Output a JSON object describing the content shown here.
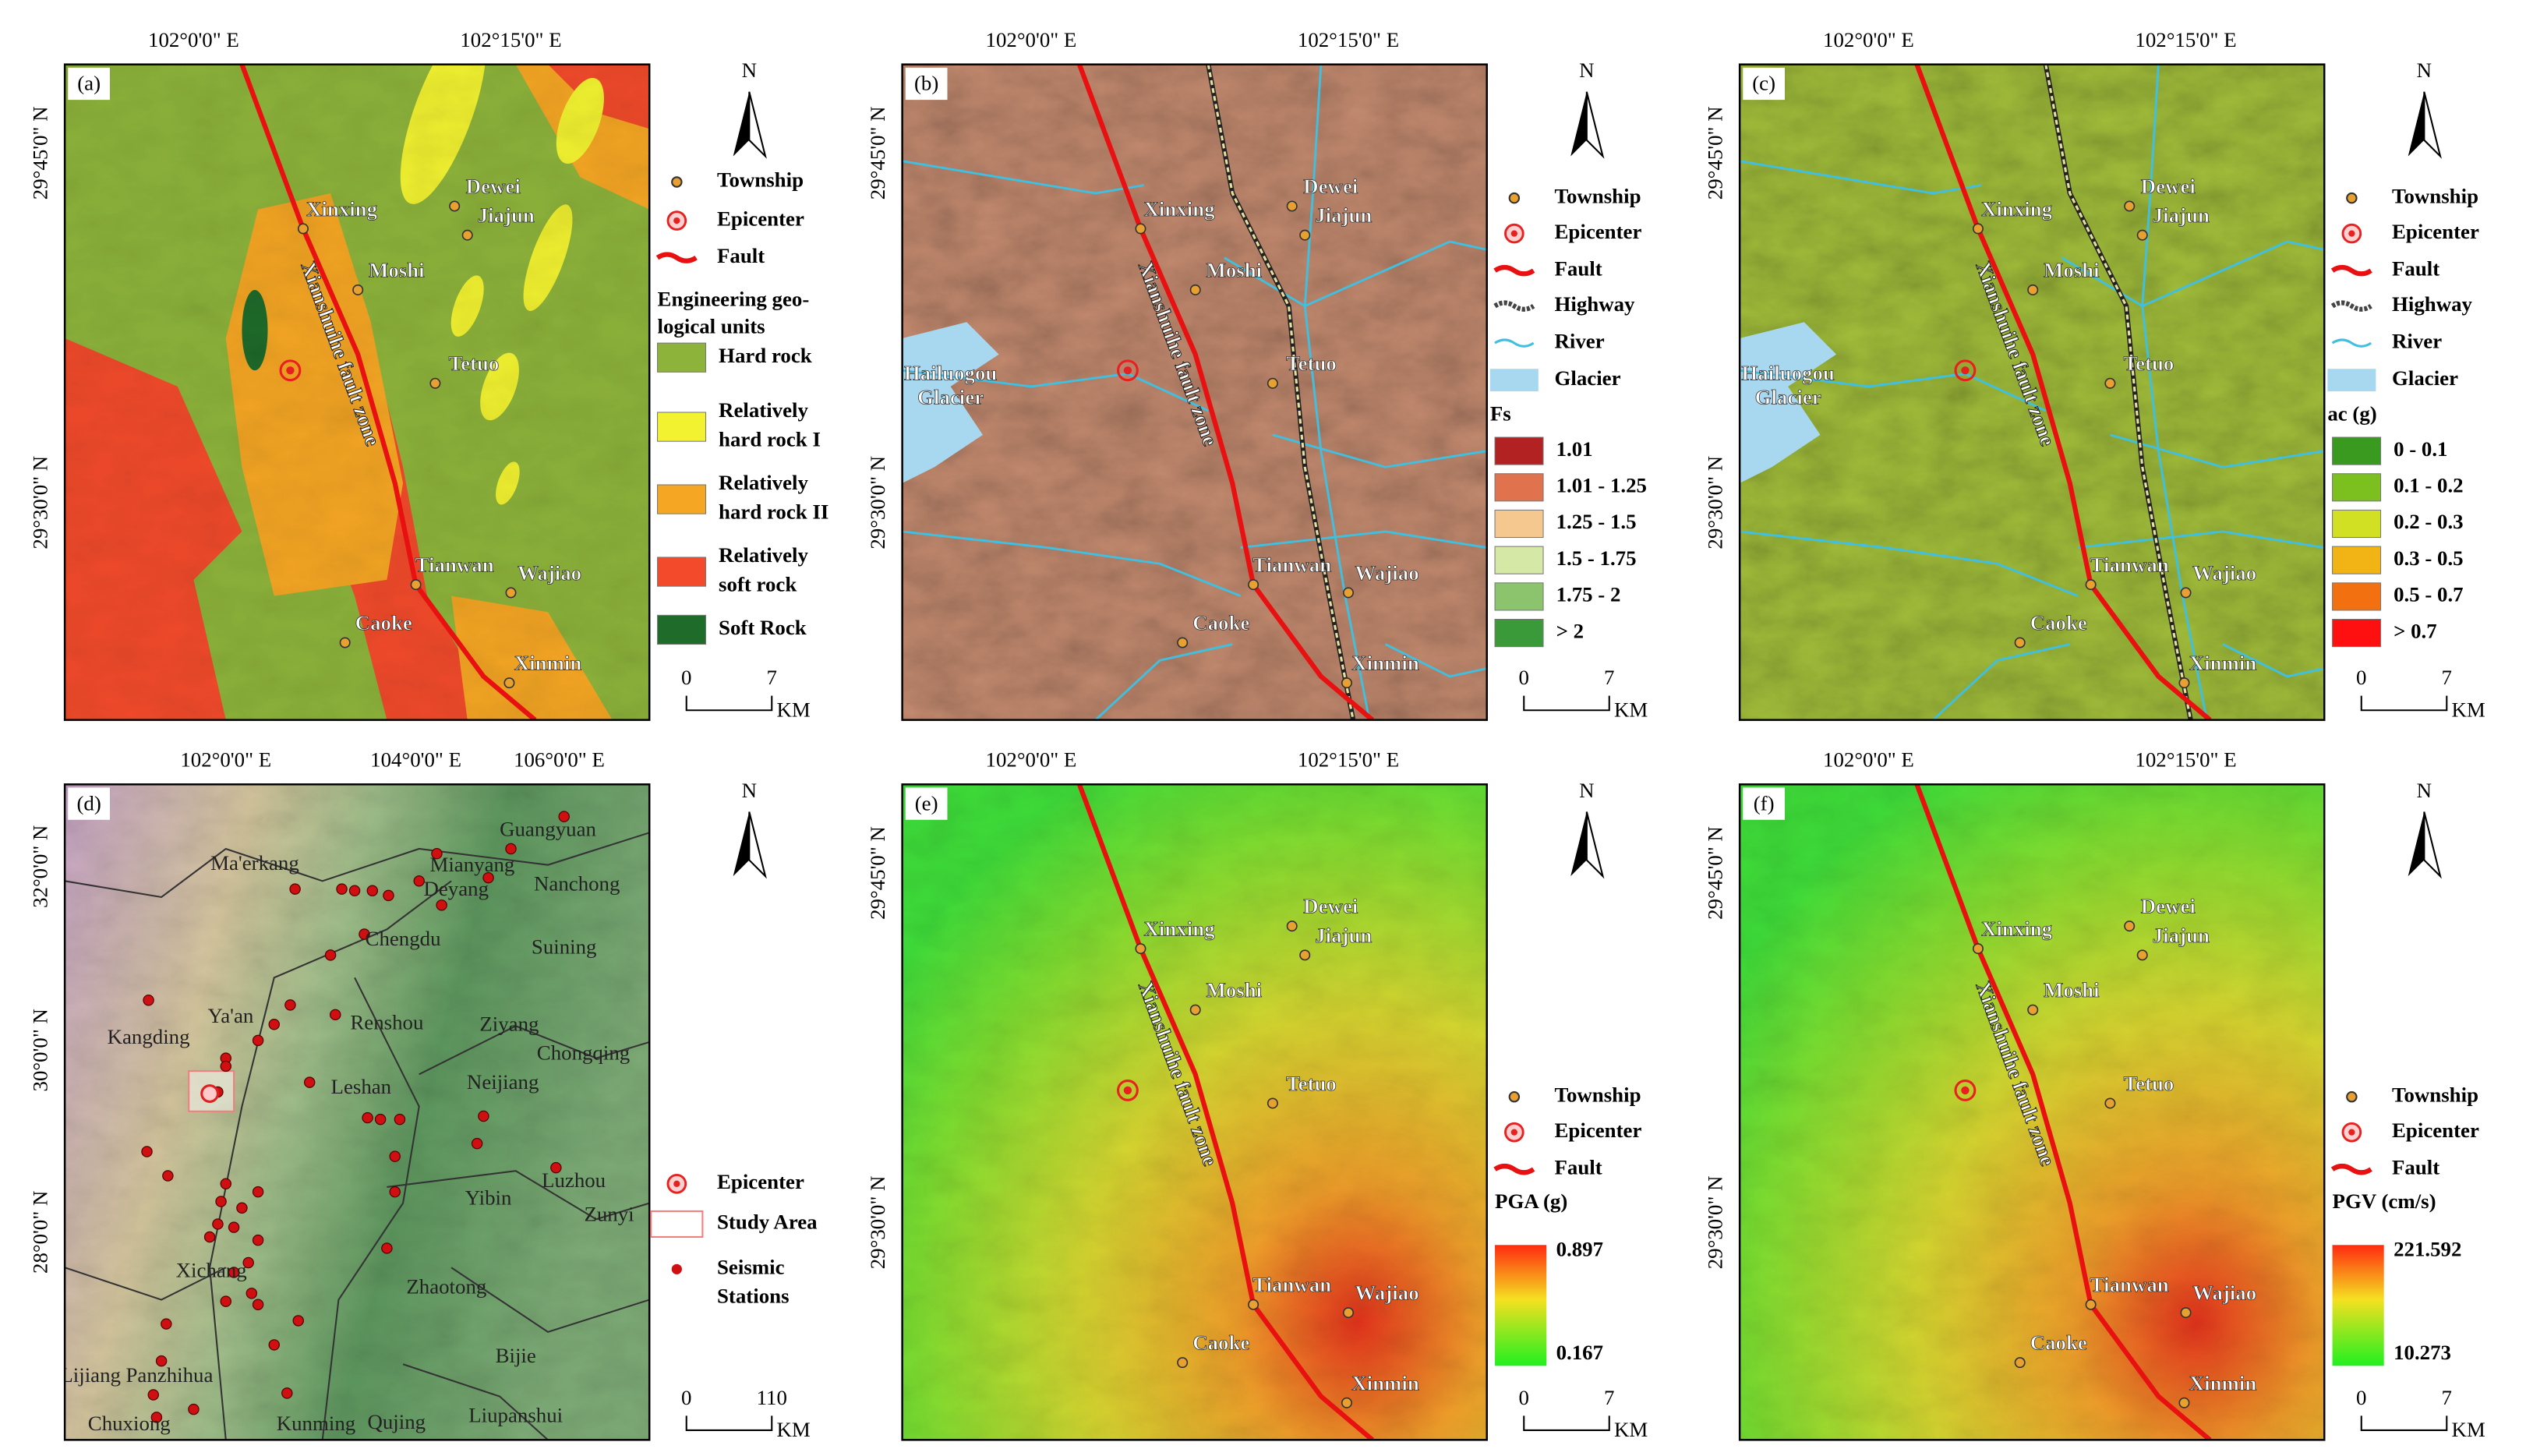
{
  "panels": [
    {
      "label": "(a)",
      "lon_labels": [
        "102°0'0\" E",
        "102°15'0\" E"
      ],
      "lat_labels": [
        "29°45'0\" N",
        "29°30'0\" N"
      ],
      "fault_label": "Xianshuihe fault zone",
      "places": [
        "Xinxing",
        "Dewei",
        "Jiajun",
        "Moshi",
        "Tetuo",
        "Tianwan",
        "Wajiao",
        "Caoke",
        "Xinmin"
      ],
      "north": "N",
      "scale": [
        "0",
        "7",
        "KM"
      ],
      "legend": {
        "symbols": [
          [
            "Township"
          ],
          [
            "Epicenter"
          ],
          [
            "Fault"
          ]
        ],
        "title": [
          "Engineering geo-",
          "logical units"
        ],
        "classes": [
          {
            "name": [
              "Hard rock"
            ],
            "color": "#8db33a"
          },
          {
            "name": [
              "Relatively",
              "hard rock I"
            ],
            "color": "#f2f230"
          },
          {
            "name": [
              "Relatively",
              "hard rock II"
            ],
            "color": "#f5a623"
          },
          {
            "name": [
              "Relatively",
              "soft rock"
            ],
            "color": "#f24a2a"
          },
          {
            "name": [
              "Soft Rock"
            ],
            "color": "#1e6b2a"
          }
        ]
      }
    },
    {
      "label": "(b)",
      "lon_labels": [
        "102°0'0\" E",
        "102°15'0\" E"
      ],
      "lat_labels": [
        "29°45'0\" N",
        "29°30'0\" N"
      ],
      "fault_label": "Xianshuihe fault zone",
      "glacier_label": [
        "Hailuogou",
        "Glacier"
      ],
      "places": [
        "Xinxing",
        "Dewei",
        "Jiajun",
        "Moshi",
        "Tetuo",
        "Tianwan",
        "Wajiao",
        "Caoke",
        "Xinmin"
      ],
      "north": "N",
      "scale": [
        "0",
        "7",
        "KM"
      ],
      "legend": {
        "symbols": [
          [
            "Township"
          ],
          [
            "Epicenter"
          ],
          [
            "Fault"
          ],
          [
            "Highway"
          ],
          [
            "River"
          ],
          [
            "Glacier"
          ]
        ],
        "title": [
          "Fs"
        ],
        "classes": [
          {
            "name": [
              "1.01"
            ],
            "color": "#b22222"
          },
          {
            "name": [
              "1.01 - 1.25"
            ],
            "color": "#e0724e"
          },
          {
            "name": [
              "1.25 - 1.5"
            ],
            "color": "#f5c890"
          },
          {
            "name": [
              "1.5 - 1.75"
            ],
            "color": "#d6e8a6"
          },
          {
            "name": [
              "1.75 - 2"
            ],
            "color": "#8cc46e"
          },
          {
            "name": [
              "> 2"
            ],
            "color": "#3a9a3a"
          }
        ]
      }
    },
    {
      "label": "(c)",
      "lon_labels": [
        "102°0'0\" E",
        "102°15'0\" E"
      ],
      "lat_labels": [
        "29°45'0\" N",
        "29°30'0\" N"
      ],
      "fault_label": "Xianshuihe fault zone",
      "glacier_label": [
        "Hailuogou",
        "Glacier"
      ],
      "places": [
        "Xinxing",
        "Dewei",
        "Jiajun",
        "Moshi",
        "Tetuo",
        "Tianwan",
        "Wajiao",
        "Caoke",
        "Xinmin"
      ],
      "north": "N",
      "scale": [
        "0",
        "7",
        "KM"
      ],
      "legend": {
        "symbols": [
          [
            "Township"
          ],
          [
            "Epicenter"
          ],
          [
            "Fault"
          ],
          [
            "Highway"
          ],
          [
            "River"
          ],
          [
            "Glacier"
          ]
        ],
        "title": [
          "ac (g)"
        ],
        "classes": [
          {
            "name": [
              "0 - 0.1"
            ],
            "color": "#3a9a20"
          },
          {
            "name": [
              "0.1 - 0.2"
            ],
            "color": "#7cc020"
          },
          {
            "name": [
              "0.2 - 0.3"
            ],
            "color": "#d2e024"
          },
          {
            "name": [
              "0.3 - 0.5"
            ],
            "color": "#f2b414"
          },
          {
            "name": [
              "0.5 - 0.7"
            ],
            "color": "#f27010"
          },
          {
            "name": [
              "> 0.7"
            ],
            "color": "#ff1010"
          }
        ]
      }
    },
    {
      "label": "(d)",
      "lon_labels": [
        "102°0'0\" E",
        "104°0'0\" E",
        "106°0'0\" E"
      ],
      "lat_labels": [
        "32°0'0\" N",
        "30°0'0\" N",
        "28°0'0\" N"
      ],
      "places": [
        "Ma'erkang",
        "Guangyuan",
        "Mianyang",
        "Deyang",
        "Nanchong",
        "Chengdu",
        "Suining",
        "Kangding",
        "Ya'an",
        "Renshou",
        "Ziyang",
        "Chongqing",
        "Neijiang",
        "Leshan",
        "Luzhou",
        "Yibin",
        "Zunyi",
        "Xichang",
        "Zhaotong",
        "Bijie",
        "Lijiang",
        "Panzhihua",
        "Qujing",
        "Liupanshui",
        "Chuxiong",
        "Kunming"
      ],
      "north": "N",
      "scale": [
        "0",
        "110",
        "KM"
      ],
      "legend": {
        "symbols": [
          [
            "Epicenter"
          ],
          [
            "Study Area"
          ],
          [
            "Seismic",
            "Stations"
          ]
        ]
      }
    },
    {
      "label": "(e)",
      "lon_labels": [
        "102°0'0\" E",
        "102°15'0\" E"
      ],
      "lat_labels": [
        "29°45'0\" N",
        "29°30'0\" N"
      ],
      "fault_label": "Xianshuihe fault zone",
      "places": [
        "Xinxing",
        "Dewei",
        "Jiajun",
        "Moshi",
        "Tetuo",
        "Tianwan",
        "Wajiao",
        "Caoke",
        "Xinmin"
      ],
      "north": "N",
      "scale": [
        "0",
        "7",
        "KM"
      ],
      "legend": {
        "symbols": [
          [
            "Township"
          ],
          [
            "Epicenter"
          ],
          [
            "Fault"
          ]
        ],
        "colorbar": {
          "title": "PGA (g)",
          "max": 0.897,
          "min": 0.167
        }
      }
    },
    {
      "label": "(f)",
      "lon_labels": [
        "102°0'0\" E",
        "102°15'0\" E"
      ],
      "lat_labels": [
        "29°45'0\" N",
        "29°30'0\" N"
      ],
      "fault_label": "Xianshuihe fault zone",
      "places": [
        "Xinxing",
        "Dewei",
        "Jiajun",
        "Moshi",
        "Tetuo",
        "Tianwan",
        "Wajiao",
        "Caoke",
        "Xinmin"
      ],
      "north": "N",
      "scale": [
        "0",
        "7",
        "KM"
      ],
      "legend": {
        "symbols": [
          [
            "Township"
          ],
          [
            "Epicenter"
          ],
          [
            "Fault"
          ]
        ],
        "colorbar": {
          "title": "PGV (cm/s)",
          "max": 221.592,
          "min": 10.273
        }
      }
    }
  ]
}
